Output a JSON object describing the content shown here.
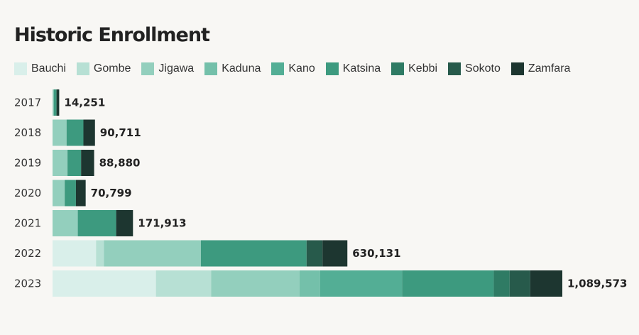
{
  "chart_data": {
    "type": "bar",
    "orientation": "horizontal",
    "stacked": true,
    "title": "Historic Enrollment",
    "categories": [
      "2017",
      "2018",
      "2019",
      "2020",
      "2021",
      "2022",
      "2023"
    ],
    "totals": [
      "14,251",
      "90,711",
      "88,880",
      "70,799",
      "171,913",
      "630,131",
      "1,089,573"
    ],
    "series": [
      {
        "name": "Bauchi",
        "color": "#d9efea",
        "values": [
          0,
          0,
          0,
          0,
          0,
          93000,
          221000
        ]
      },
      {
        "name": "Gombe",
        "color": "#b7e0d4",
        "values": [
          0,
          0,
          0,
          0,
          0,
          17000,
          118000
        ]
      },
      {
        "name": "Jigawa",
        "color": "#93cfbd",
        "values": [
          2500,
          30000,
          32000,
          26000,
          54000,
          207000,
          189000
        ]
      },
      {
        "name": "Kaduna",
        "color": "#74c0aa",
        "values": [
          0,
          0,
          0,
          0,
          0,
          0,
          44000
        ]
      },
      {
        "name": "Kano",
        "color": "#53ae95",
        "values": [
          0,
          0,
          0,
          0,
          0,
          0,
          175000
        ]
      },
      {
        "name": "Katsina",
        "color": "#3d9a7f",
        "values": [
          6000,
          36000,
          29000,
          24000,
          82000,
          226000,
          196000
        ]
      },
      {
        "name": "Kebbi",
        "color": "#2f7b64",
        "values": [
          0,
          0,
          0,
          0,
          0,
          0,
          34000
        ]
      },
      {
        "name": "Sokoto",
        "color": "#275a4b",
        "values": [
          0,
          0,
          0,
          0,
          0,
          34000,
          44000
        ]
      },
      {
        "name": "Zamfara",
        "color": "#1d3630",
        "values": [
          5751,
          24711,
          27880,
          20799,
          35913,
          53131,
          68573
        ]
      }
    ],
    "xlim": [
      0,
      1089573
    ],
    "grid": false,
    "legend_position": "top-left"
  }
}
